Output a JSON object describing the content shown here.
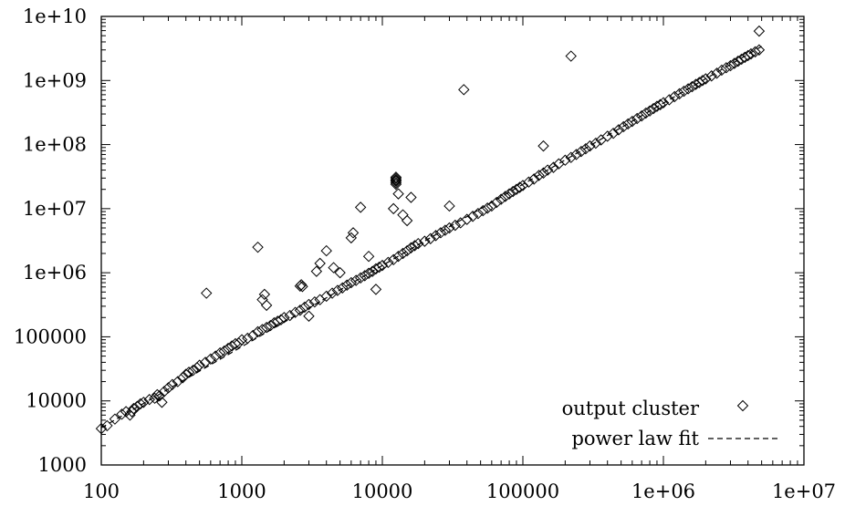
{
  "chart_data": {
    "type": "scatter",
    "title": "",
    "xlabel": "",
    "ylabel": "",
    "x_scale": "log",
    "y_scale": "log",
    "xlim": [
      100,
      10000000
    ],
    "ylim": [
      1000,
      10000000000
    ],
    "x_ticks": [
      {
        "value": 100,
        "label": "100"
      },
      {
        "value": 1000,
        "label": "1000"
      },
      {
        "value": 10000,
        "label": "10000"
      },
      {
        "value": 100000,
        "label": "100000"
      },
      {
        "value": 1000000,
        "label": "1e+06"
      },
      {
        "value": 10000000,
        "label": "1e+07"
      }
    ],
    "y_ticks": [
      {
        "value": 1000,
        "label": "1000"
      },
      {
        "value": 10000,
        "label": "10000"
      },
      {
        "value": 100000,
        "label": "100000"
      },
      {
        "value": 1000000,
        "label": "1e+06"
      },
      {
        "value": 10000000,
        "label": "1e+07"
      },
      {
        "value": 100000000,
        "label": "1e+08"
      },
      {
        "value": 1000000000,
        "label": "1e+09"
      },
      {
        "value": 10000000000,
        "label": "1e+10"
      }
    ],
    "grid": false,
    "legend_position": "bottom-right",
    "legend": [
      {
        "label": "output cluster",
        "marker": "diamond"
      },
      {
        "label": "power law fit",
        "marker": "dashed-line"
      }
    ],
    "series": [
      {
        "name": "output cluster",
        "marker": "diamond",
        "color": "#000000",
        "points": [
          [
            100,
            3700
          ],
          [
            110,
            4100
          ],
          [
            125,
            5200
          ],
          [
            140,
            6200
          ],
          [
            150,
            6800
          ],
          [
            160,
            6000
          ],
          [
            165,
            6800
          ],
          [
            170,
            7600
          ],
          [
            180,
            8200
          ],
          [
            190,
            9000
          ],
          [
            200,
            9500
          ],
          [
            220,
            10500
          ],
          [
            240,
            11000
          ],
          [
            250,
            12500
          ],
          [
            260,
            12000
          ],
          [
            270,
            9500
          ],
          [
            280,
            14000
          ],
          [
            300,
            16000
          ],
          [
            320,
            18000
          ],
          [
            350,
            20000
          ],
          [
            380,
            23000
          ],
          [
            400,
            26000
          ],
          [
            420,
            28000
          ],
          [
            450,
            30000
          ],
          [
            480,
            33000
          ],
          [
            500,
            36000
          ],
          [
            550,
            40000
          ],
          [
            600,
            45000
          ],
          [
            650,
            50000
          ],
          [
            700,
            56000
          ],
          [
            750,
            60000
          ],
          [
            800,
            66000
          ],
          [
            850,
            72000
          ],
          [
            900,
            78000
          ],
          [
            950,
            80000
          ],
          [
            1000,
            90000
          ],
          [
            1100,
            95000
          ],
          [
            1200,
            105000
          ],
          [
            1300,
            120000
          ],
          [
            1400,
            130000
          ],
          [
            1500,
            140000
          ],
          [
            1600,
            150000
          ],
          [
            1700,
            165000
          ],
          [
            1800,
            175000
          ],
          [
            1900,
            185000
          ],
          [
            2000,
            200000
          ],
          [
            2200,
            215000
          ],
          [
            2400,
            240000
          ],
          [
            2600,
            260000
          ],
          [
            2800,
            290000
          ],
          [
            3000,
            320000
          ],
          [
            3300,
            350000
          ],
          [
            3600,
            380000
          ],
          [
            4000,
            430000
          ],
          [
            4400,
            480000
          ],
          [
            4800,
            530000
          ],
          [
            5200,
            580000
          ],
          [
            5600,
            640000
          ],
          [
            6000,
            700000
          ],
          [
            6500,
            760000
          ],
          [
            7000,
            830000
          ],
          [
            7500,
            900000
          ],
          [
            8000,
            980000
          ],
          [
            8500,
            1050000
          ],
          [
            9000,
            1150000
          ],
          [
            9500,
            1220000
          ],
          [
            10000,
            1300000
          ],
          [
            11000,
            1450000
          ],
          [
            12000,
            1600000
          ],
          [
            13000,
            1800000
          ],
          [
            14000,
            2000000
          ],
          [
            15000,
            2200000
          ],
          [
            16000,
            2450000
          ],
          [
            17000,
            2650000
          ],
          [
            18000,
            2850000
          ],
          [
            20000,
            3100000
          ],
          [
            22000,
            3400000
          ],
          [
            24000,
            3800000
          ],
          [
            26000,
            4200000
          ],
          [
            28000,
            4600000
          ],
          [
            30000,
            5000000
          ],
          [
            33000,
            5500000
          ],
          [
            36000,
            6000000
          ],
          [
            40000,
            6800000
          ],
          [
            44000,
            7600000
          ],
          [
            48000,
            8400000
          ],
          [
            52000,
            9300000
          ],
          [
            56000,
            10200000
          ],
          [
            60000,
            11000000
          ],
          [
            65000,
            12500000
          ],
          [
            70000,
            14000000
          ],
          [
            75000,
            15500000
          ],
          [
            80000,
            17000000
          ],
          [
            85000,
            18500000
          ],
          [
            90000,
            20000000
          ],
          [
            95000,
            21500000
          ],
          [
            100000,
            23000000
          ],
          [
            110000,
            26000000
          ],
          [
            120000,
            29000000
          ],
          [
            130000,
            33000000
          ],
          [
            140000,
            36000000
          ],
          [
            150000,
            40000000
          ],
          [
            165000,
            44000000
          ],
          [
            180000,
            50000000
          ],
          [
            200000,
            57000000
          ],
          [
            220000,
            63000000
          ],
          [
            240000,
            70000000
          ],
          [
            260000,
            78000000
          ],
          [
            280000,
            86000000
          ],
          [
            300000,
            95000000
          ],
          [
            330000,
            105000000
          ],
          [
            360000,
            118000000
          ],
          [
            400000,
            135000000
          ],
          [
            440000,
            150000000
          ],
          [
            480000,
            170000000
          ],
          [
            520000,
            190000000
          ],
          [
            560000,
            210000000
          ],
          [
            600000,
            230000000
          ],
          [
            650000,
            255000000
          ],
          [
            700000,
            280000000
          ],
          [
            750000,
            310000000
          ],
          [
            800000,
            335000000
          ],
          [
            850000,
            365000000
          ],
          [
            900000,
            395000000
          ],
          [
            950000,
            420000000
          ],
          [
            1000000,
            450000000
          ],
          [
            1100000,
            500000000
          ],
          [
            1200000,
            560000000
          ],
          [
            1300000,
            620000000
          ],
          [
            1400000,
            680000000
          ],
          [
            1500000,
            740000000
          ],
          [
            1600000,
            800000000
          ],
          [
            1700000,
            870000000
          ],
          [
            1800000,
            930000000
          ],
          [
            1900000,
            1000000000
          ],
          [
            2000000,
            1060000000
          ],
          [
            2200000,
            1180000000
          ],
          [
            2400000,
            1300000000
          ],
          [
            2600000,
            1450000000
          ],
          [
            2800000,
            1580000000
          ],
          [
            3000000,
            1700000000
          ],
          [
            3200000,
            1850000000
          ],
          [
            3400000,
            2000000000
          ],
          [
            3600000,
            2150000000
          ],
          [
            3800000,
            2300000000
          ],
          [
            4000000,
            2450000000
          ],
          [
            4200000,
            2600000000
          ],
          [
            4500000,
            2800000000
          ],
          [
            4800000,
            3000000000
          ],
          [
            560,
            480000
          ],
          [
            1300,
            2500000
          ],
          [
            1400,
            380000
          ],
          [
            1450,
            460000
          ],
          [
            1500,
            310000
          ],
          [
            2600,
            620000
          ],
          [
            2650,
            650000
          ],
          [
            2700,
            610000
          ],
          [
            3000,
            210000
          ],
          [
            3400,
            1050000
          ],
          [
            3600,
            1400000
          ],
          [
            4000,
            2200000
          ],
          [
            4500,
            1200000
          ],
          [
            5000,
            1000000
          ],
          [
            6000,
            3500000
          ],
          [
            6200,
            4200000
          ],
          [
            7000,
            10500000
          ],
          [
            8000,
            1800000
          ],
          [
            9000,
            550000
          ],
          [
            12000,
            10000000
          ],
          [
            12500,
            24000000
          ],
          [
            12500,
            25500000
          ],
          [
            12500,
            27000000
          ],
          [
            12500,
            28000000
          ],
          [
            12500,
            29500000
          ],
          [
            12500,
            31000000
          ],
          [
            13000,
            17000000
          ],
          [
            14000,
            8000000
          ],
          [
            15000,
            6500000
          ],
          [
            16000,
            15000000
          ],
          [
            30000,
            11000000
          ],
          [
            140000,
            95000000
          ],
          [
            38000,
            720000000
          ],
          [
            220000,
            2400000000
          ],
          [
            4800000,
            5900000000
          ]
        ]
      },
      {
        "name": "power law fit",
        "type": "line",
        "style": "dashed",
        "color": "#000000",
        "points": [
          [
            100,
            3800
          ],
          [
            5000000,
            3400000000
          ]
        ]
      }
    ]
  }
}
